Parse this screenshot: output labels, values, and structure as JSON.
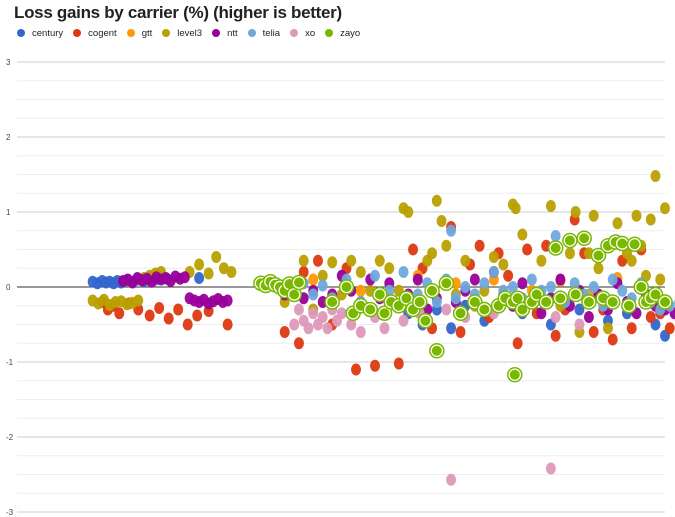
{
  "chart_data": {
    "type": "scatter",
    "title": "Loss gains by carrier (%) (higher is better)",
    "xlabel": "",
    "ylabel": "",
    "ylim": [
      -3,
      3
    ],
    "yticks": [
      3,
      2,
      1,
      0,
      -1,
      -2,
      -3
    ],
    "xlim": [
      0,
      650
    ],
    "grid": true,
    "legend_position": "top-left",
    "series": [
      {
        "name": "century",
        "color": "#3366cc",
        "x": [
          48,
          53,
          58,
          62,
          66,
          70,
          74,
          78,
          84,
          90,
          96,
          102,
          108,
          114,
          120,
          126,
          160,
          380,
          395,
          410,
          425,
          440,
          460,
          500,
          530,
          560,
          590,
          610,
          640,
          650
        ],
        "y": [
          0.07,
          0.05,
          0.08,
          0.06,
          0.07,
          0.05,
          0.08,
          0.06,
          0.09,
          0.07,
          0.1,
          0.08,
          0.12,
          0.1,
          0.13,
          0.11,
          0.12,
          -0.35,
          -0.5,
          -0.3,
          -0.55,
          -0.25,
          -0.45,
          -0.35,
          -0.5,
          -0.3,
          -0.45,
          -0.35,
          -0.5,
          -0.65
        ]
      },
      {
        "name": "cogent",
        "color": "#dc3912",
        "x": [
          58,
          64,
          70,
          76,
          86,
          96,
          108,
          118,
          128,
          138,
          148,
          158,
          170,
          190,
          250,
          265,
          270,
          285,
          300,
          315,
          325,
          345,
          370,
          385,
          395,
          405,
          425,
          435,
          445,
          455,
          465,
          475,
          485,
          495,
          505,
          515,
          525,
          535,
          545,
          555,
          565,
          575,
          585,
          595,
          605,
          615,
          625,
          635,
          645,
          655
        ],
        "y": [
          -0.2,
          -0.3,
          -0.25,
          -0.35,
          -0.22,
          -0.3,
          -0.38,
          -0.28,
          -0.42,
          -0.3,
          -0.5,
          -0.38,
          -0.32,
          -0.5,
          -0.6,
          -0.75,
          0.2,
          0.35,
          -0.5,
          0.25,
          -1.1,
          -1.05,
          -1.02,
          0.5,
          0.25,
          -0.55,
          0.8,
          -0.6,
          0.3,
          0.55,
          -0.4,
          0.45,
          0.15,
          -0.75,
          0.5,
          -0.35,
          0.55,
          -0.65,
          -0.3,
          0.9,
          0.45,
          -0.6,
          -0.3,
          -0.7,
          0.35,
          -0.55,
          0.5,
          -0.4,
          -0.35,
          -0.55
        ]
      },
      {
        "name": "gtt",
        "color": "#ff9900",
        "x": [
          280,
          330,
          390,
          430,
          470,
          510,
          540,
          570,
          600,
          625
        ],
        "y": [
          0.1,
          -0.05,
          0.15,
          0.05,
          0.1,
          -0.05,
          0.08,
          -0.1,
          0.12,
          0.05
        ]
      },
      {
        "name": "level3",
        "color": "#b8a000",
        "x": [
          48,
          54,
          60,
          66,
          72,
          78,
          84,
          90,
          96,
          102,
          108,
          114,
          120,
          150,
          160,
          170,
          178,
          186,
          194,
          250,
          260,
          270,
          280,
          290,
          300,
          310,
          320,
          330,
          340,
          350,
          360,
          370,
          375,
          380,
          390,
          400,
          405,
          410,
          415,
          420,
          430,
          440,
          450,
          460,
          470,
          480,
          490,
          493,
          500,
          510,
          520,
          530,
          540,
          550,
          556,
          560,
          570,
          575,
          580,
          590,
          600,
          610,
          615,
          620,
          625,
          630,
          635,
          640,
          645,
          650
        ],
        "y": [
          -0.18,
          -0.22,
          -0.17,
          -0.24,
          -0.2,
          -0.19,
          -0.23,
          -0.21,
          -0.18,
          0.12,
          0.15,
          0.18,
          0.2,
          0.2,
          0.3,
          0.18,
          0.4,
          0.25,
          0.2,
          -0.2,
          -0.1,
          0.35,
          -0.3,
          0.15,
          0.33,
          -0.1,
          0.35,
          0.2,
          -0.05,
          0.35,
          0.25,
          -0.05,
          1.05,
          1.0,
          -0.2,
          0.35,
          0.45,
          1.15,
          0.88,
          0.55,
          -0.1,
          0.35,
          -0.25,
          -0.05,
          0.4,
          0.3,
          1.1,
          1.05,
          0.7,
          -0.2,
          0.35,
          1.08,
          -0.25,
          0.45,
          1.0,
          -0.6,
          0.45,
          0.95,
          0.25,
          -0.55,
          0.85,
          0.45,
          0.35,
          0.95,
          0.55,
          0.15,
          0.9,
          1.48,
          0.1,
          1.05
        ]
      },
      {
        "name": "ntt",
        "color": "#990099",
        "x": [
          80,
          85,
          90,
          95,
          100,
          105,
          110,
          115,
          120,
          125,
          130,
          135,
          140,
          145,
          150,
          155,
          160,
          165,
          170,
          175,
          180,
          185,
          190,
          240,
          250,
          260,
          270,
          280,
          290,
          300,
          310,
          320,
          330,
          340,
          350,
          360,
          370,
          380,
          390,
          400,
          410,
          420,
          430,
          440,
          450,
          460,
          470,
          480,
          490,
          500,
          510,
          520,
          530,
          540,
          550,
          560,
          570,
          580,
          590,
          600,
          610,
          620,
          630,
          640,
          650,
          660
        ],
        "y": [
          0.08,
          0.1,
          0.06,
          0.12,
          0.09,
          0.11,
          0.07,
          0.13,
          0.1,
          0.12,
          0.08,
          0.14,
          0.11,
          0.13,
          -0.15,
          -0.18,
          -0.2,
          -0.17,
          -0.22,
          -0.19,
          -0.16,
          -0.2,
          -0.18,
          0.05,
          -0.1,
          0.05,
          -0.15,
          -0.05,
          -0.2,
          -0.1,
          0.15,
          -0.05,
          -0.2,
          0.1,
          -0.15,
          0.05,
          -0.25,
          -0.1,
          0.1,
          -0.3,
          -0.15,
          0.05,
          -0.2,
          -0.05,
          0.1,
          -0.3,
          0.2,
          -0.1,
          -0.25,
          0.05,
          -0.2,
          -0.35,
          -0.15,
          0.1,
          -0.25,
          -0.05,
          -0.4,
          -0.1,
          -0.3,
          0.05,
          -0.2,
          -0.35,
          -0.1,
          -0.25,
          -0.3,
          -0.35
        ]
      },
      {
        "name": "telia",
        "color": "#6fa8dc",
        "x": [
          270,
          280,
          290,
          300,
          315,
          330,
          345,
          360,
          375,
          390,
          400,
          410,
          420,
          425,
          430,
          440,
          450,
          460,
          470,
          480,
          490,
          500,
          510,
          520,
          530,
          535,
          545,
          555,
          565,
          575,
          585,
          595,
          605,
          615,
          625,
          635,
          645,
          655,
          665
        ],
        "y": [
          0.05,
          -0.1,
          0.02,
          -0.15,
          0.1,
          -0.2,
          0.15,
          -0.05,
          0.2,
          -0.1,
          0.05,
          -0.2,
          0.1,
          0.75,
          -0.15,
          0.0,
          -0.1,
          0.05,
          0.2,
          -0.05,
          0.0,
          -0.15,
          0.1,
          -0.05,
          0.0,
          0.68,
          -0.2,
          0.05,
          -0.1,
          0.0,
          -0.25,
          0.1,
          -0.05,
          -0.15,
          0.05,
          -0.2,
          -0.3,
          -0.25,
          -0.2
        ]
      },
      {
        "name": "xo",
        "color": "#dd99bb",
        "x": [
          260,
          265,
          270,
          275,
          280,
          285,
          290,
          295,
          300,
          305,
          310,
          320,
          330,
          345,
          355,
          375,
          392,
          420,
          425,
          440,
          470,
          500,
          530,
          535,
          560
        ],
        "y": [
          -0.5,
          -0.3,
          -0.45,
          -0.55,
          -0.35,
          -0.5,
          -0.4,
          -0.55,
          -0.3,
          -0.45,
          -0.35,
          -0.5,
          -0.6,
          -0.4,
          -0.55,
          -0.45,
          -0.35,
          -0.3,
          -2.57,
          -0.4,
          -0.35,
          -0.3,
          -2.42,
          -0.4,
          -0.5
        ]
      },
      {
        "name": "zayo",
        "color": "#7ab800",
        "x": [
          225,
          230,
          235,
          240,
          245,
          250,
          255,
          260,
          265,
          300,
          315,
          322,
          330,
          340,
          350,
          355,
          362,
          370,
          378,
          385,
          392,
          398,
          405,
          410,
          420,
          435,
          450,
          460,
          475,
          482,
          490,
          492,
          495,
          500,
          510,
          515,
          525,
          535,
          540,
          550,
          556,
          565,
          570,
          580,
          585,
          590,
          595,
          598,
          605,
          612,
          618,
          625,
          630,
          635,
          640,
          650
        ],
        "y": [
          0.05,
          0.02,
          0.07,
          0.03,
          0.0,
          -0.05,
          0.04,
          -0.1,
          0.06,
          -0.2,
          0.0,
          -0.35,
          -0.25,
          -0.3,
          -0.1,
          -0.35,
          -0.2,
          -0.25,
          -0.15,
          -0.3,
          -0.2,
          -0.45,
          -0.05,
          -0.85,
          0.05,
          -0.35,
          -0.2,
          -0.3,
          -0.25,
          -0.15,
          -0.2,
          -1.17,
          -0.15,
          -0.3,
          -0.2,
          -0.1,
          -0.2,
          0.52,
          -0.15,
          0.62,
          -0.1,
          0.65,
          -0.2,
          0.42,
          -0.15,
          0.55,
          -0.2,
          0.6,
          0.58,
          -0.25,
          0.57,
          0.0,
          -0.2,
          -0.15,
          -0.1,
          -0.2
        ]
      }
    ]
  }
}
